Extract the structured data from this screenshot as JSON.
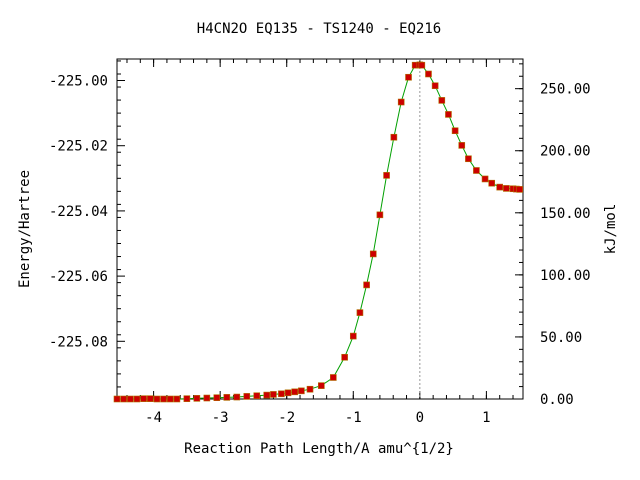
{
  "chart_data": {
    "type": "scatter",
    "title": "H4CN2O   EQ135 - TS1240 - EQ216",
    "xlabel": "Reaction Path Length/A amu^{1/2}",
    "ylabel": "Energy/Hartree",
    "y2label": "kJ/mol",
    "xlim": [
      -4.55,
      1.55
    ],
    "ylim": [
      -225.0977,
      -224.9934
    ],
    "y2lim": [
      0.0,
      273.9
    ],
    "x_ticks": [
      -4,
      -3,
      -2,
      -1,
      0,
      1
    ],
    "x_tick_labels": [
      "-4",
      "-3",
      "-2",
      "-1",
      "0",
      "1"
    ],
    "y_ticks": [
      -225.0,
      -225.02,
      -225.04,
      -225.06,
      -225.08
    ],
    "y_tick_labels": [
      "-225.00",
      "-225.02",
      "-225.04",
      "-225.06",
      "-225.08"
    ],
    "y2_ticks": [
      0,
      50,
      100,
      150,
      200,
      250
    ],
    "y2_tick_labels": [
      "0.00",
      "50.00",
      "100.00",
      "150.00",
      "200.00",
      "250.00"
    ],
    "ts_marker_x": 0.0,
    "grid": false,
    "series": [
      {
        "color": "#cc0000",
        "line_color": "#00a000",
        "x": [
          -4.55,
          -4.45,
          -4.35,
          -4.25,
          -4.15,
          -4.05,
          -3.95,
          -3.85,
          -3.75,
          -3.65,
          -3.5,
          -3.35,
          -3.2,
          -3.05,
          -2.9,
          -2.75,
          -2.6,
          -2.45,
          -2.3,
          -2.2,
          -2.08,
          -1.98,
          -1.88,
          -1.78,
          -1.65,
          -1.48,
          -1.3,
          -1.13,
          -1.0,
          -0.9,
          -0.8,
          -0.7,
          -0.6,
          -0.5,
          -0.39,
          -0.28,
          -0.17,
          -0.07,
          0.0,
          0.03,
          0.13,
          0.23,
          0.33,
          0.43,
          0.53,
          0.63,
          0.73,
          0.85,
          0.98,
          1.08,
          1.2,
          1.3,
          1.4,
          1.45,
          1.5
        ],
        "y": [
          -225.0977,
          -225.0977,
          -225.0977,
          -225.0977,
          -225.0976,
          -225.0976,
          -225.0977,
          -225.0977,
          -225.0977,
          -225.0977,
          -225.0976,
          -225.0975,
          -225.0974,
          -225.0973,
          -225.0972,
          -225.0971,
          -225.0969,
          -225.0967,
          -225.0965,
          -225.0963,
          -225.0961,
          -225.0958,
          -225.0955,
          -225.0952,
          -225.0947,
          -225.0936,
          -225.0911,
          -225.0849,
          -225.0784,
          -225.0712,
          -225.0627,
          -225.0532,
          -225.0412,
          -225.0291,
          -225.0174,
          -225.0066,
          -224.999,
          -224.9953,
          -224.9952,
          -224.9953,
          -224.998,
          -225.0016,
          -225.0061,
          -225.0104,
          -225.0154,
          -225.0199,
          -225.024,
          -225.0276,
          -225.0302,
          -225.0315,
          -225.0327,
          -225.0331,
          -225.0332,
          -225.0333,
          -225.0334
        ]
      }
    ]
  }
}
